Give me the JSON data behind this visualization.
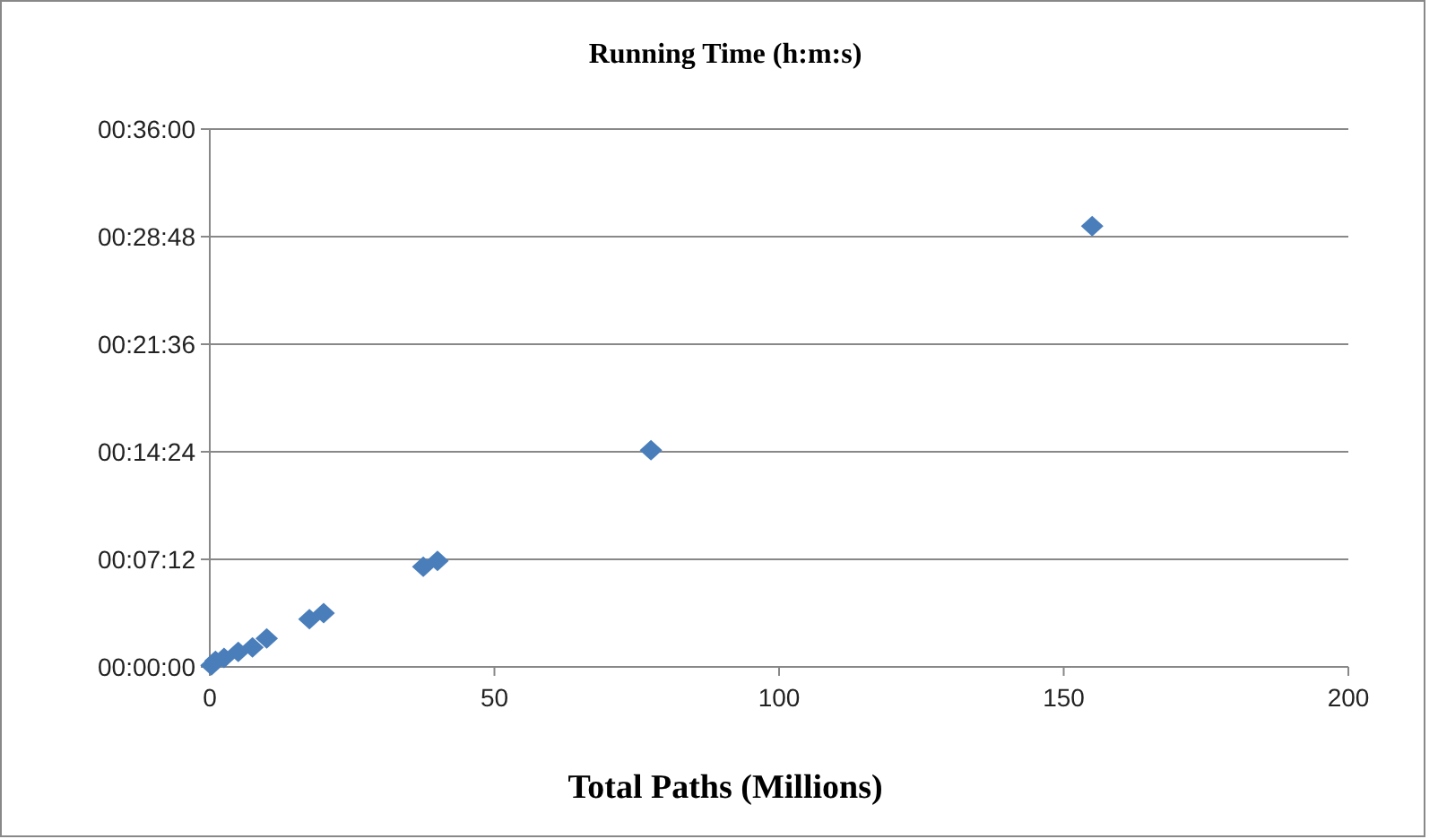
{
  "chart_data": {
    "type": "scatter",
    "title": "Running Time (h:m:s)",
    "xlabel": "Total Paths (Millions)",
    "x": [
      0.3,
      1,
      2.5,
      5,
      7.5,
      10,
      17.5,
      20,
      37.5,
      40,
      77.5,
      155
    ],
    "series": [
      {
        "color": "#4a7ebb",
        "values": [
          0.1,
          0.4,
          0.6,
          1,
          1.3,
          1.9,
          3.2,
          3.6,
          6.7,
          7.1,
          14.5,
          29.5
        ]
      }
    ],
    "xlim": [
      0,
      200
    ],
    "xticks": [
      0,
      50,
      100,
      150,
      200
    ],
    "ylim": [
      0,
      36
    ],
    "yticks": [
      {
        "value": 0,
        "label": "00:00:00"
      },
      {
        "value": 7.2,
        "label": "00:07:12"
      },
      {
        "value": 14.4,
        "label": "00:14:24"
      },
      {
        "value": 21.6,
        "label": "00:21:36"
      },
      {
        "value": 28.8,
        "label": "00:28:48"
      },
      {
        "value": 36,
        "label": "00:36:00"
      }
    ],
    "grid": "y",
    "marker": "diamond"
  }
}
